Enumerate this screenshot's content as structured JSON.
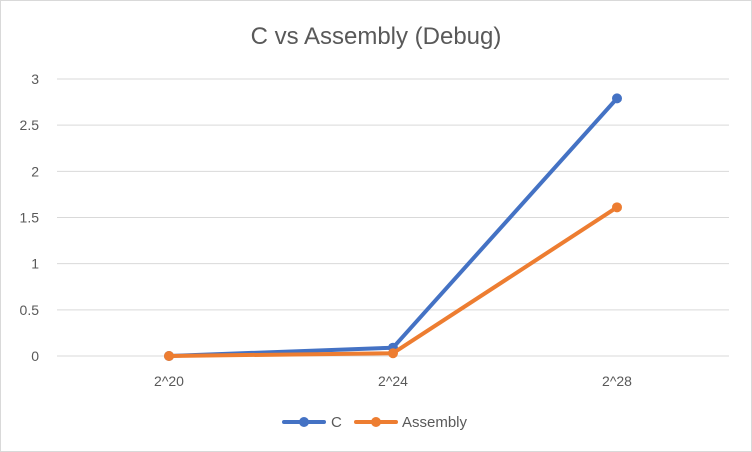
{
  "chart_data": {
    "type": "line",
    "title": "C vs Assembly (Debug)",
    "categories": [
      "2^20",
      "2^24",
      "2^28"
    ],
    "series": [
      {
        "name": "C",
        "values": [
          0.0,
          0.09,
          2.79
        ],
        "color": "#4472C4"
      },
      {
        "name": "Assembly",
        "values": [
          0.0,
          0.03,
          1.61
        ],
        "color": "#ED7D31"
      }
    ],
    "ylim": [
      0,
      3
    ],
    "yticks": [
      "0",
      "0.5",
      "1",
      "1.5",
      "2",
      "2.5",
      "3"
    ],
    "grid": true,
    "legend_position": "bottom"
  }
}
